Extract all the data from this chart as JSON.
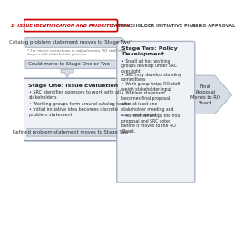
{
  "background_color": "#f5f5f5",
  "title_phase1": "1- ISSUE IDENTIFICATION AND PRIORITIZATION",
  "title_phase2": "2- STAKEHOLDER INITIATIVE PHASE",
  "title_phase3": "3- RO APPROVAL",
  "arrow1_text": "Catalog problem statement moves to Stage Two*",
  "arrow1_note": "* For minor corrections or adjustments, RO staff may\nforgo a full stakeholder process...",
  "arrow2_text": "Could move to Stage One or Two",
  "stage1_title": "Stage One: Issue Evaluation",
  "stage1_bullets": [
    "SRC identifies sponsors to work with all\nstakeholders",
    "Working groups form around catalog issues",
    "Initial initiative idea becomes discrete\nproblem statement"
  ],
  "arrow3_text": "Refined problem statement moves to Stage Two",
  "stage2_title": "Stage Two: Policy\nDevelopment",
  "stage2_bullets": [
    "Small ad hoc working\ngroups develop under SRC\noversight",
    "SRC may develop standing\ncommittees",
    "Work group helps RO staff\nweigh stakeholder input",
    "Problem statement\nbecomes final proposal,\nafter at least one\nstakeholder meeting and\ncomment period",
    "RO staff develops the final\nproposal and SRC votes\nbefore it moves to the RO\nBoard."
  ],
  "final_arrow_text": "Final\nProposal\nMoves to RO\nBoard",
  "arrow_fill": "#d6dde6",
  "arrow_edge": "#aab5c2",
  "box_fill": "#eef1f5",
  "box_edge": "#aab5c2",
  "stage1_edge": "#8898aa",
  "phase1_border": "#cc0000",
  "text_color": "#2a2a2a",
  "header_color": "#444444",
  "note_color": "#666666"
}
